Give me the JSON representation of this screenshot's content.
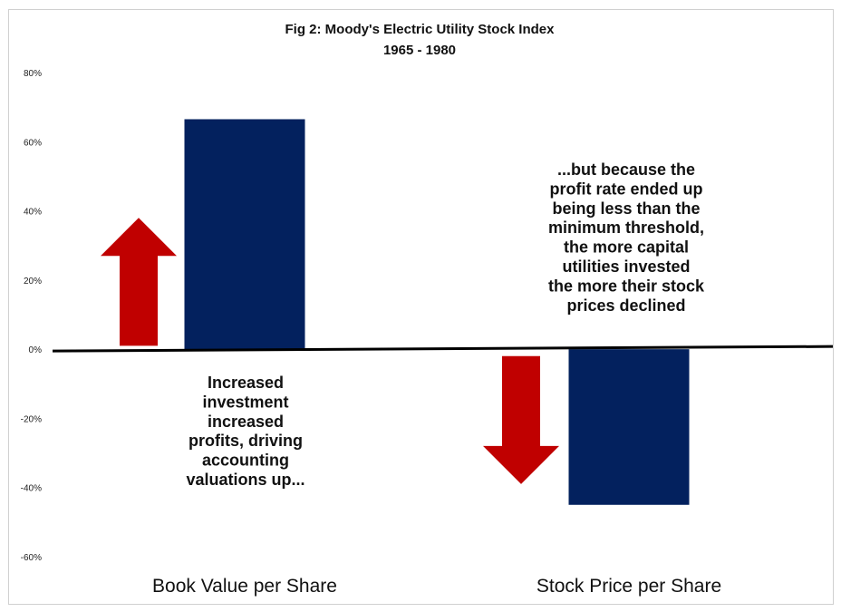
{
  "chart_data": {
    "type": "bar",
    "title": "Fig 2: Moody's Electric Utility Stock Index",
    "subtitle": "1965 - 1980",
    "categories": [
      "Book Value per Share",
      "Stock Price per Share"
    ],
    "values": [
      66.5,
      -45
    ],
    "ylim": [
      -60,
      80
    ],
    "y_ticks": [
      80,
      60,
      40,
      20,
      0,
      -20,
      -40,
      -60
    ],
    "y_tick_labels": [
      "80%",
      "60%",
      "40%",
      "20%",
      "0%",
      "-20%",
      "-40%",
      "-60%"
    ],
    "bar_color": "#03215E",
    "arrow_color": "#C00000",
    "grid": false,
    "legend": "none",
    "annotations": [
      {
        "lines": [
          "Increased",
          "investment",
          "increased",
          "profits, driving",
          "accounting",
          "valuations up..."
        ]
      },
      {
        "lines": [
          "...but because the",
          "profit rate ended up",
          "being less than the",
          "minimum threshold,",
          "the more capital",
          "utilities invested",
          "the more their stock",
          "prices declined"
        ]
      }
    ],
    "arrows": [
      {
        "direction": "up",
        "from": 1,
        "to": 38
      },
      {
        "direction": "down",
        "from": -2,
        "to": -39
      }
    ]
  }
}
